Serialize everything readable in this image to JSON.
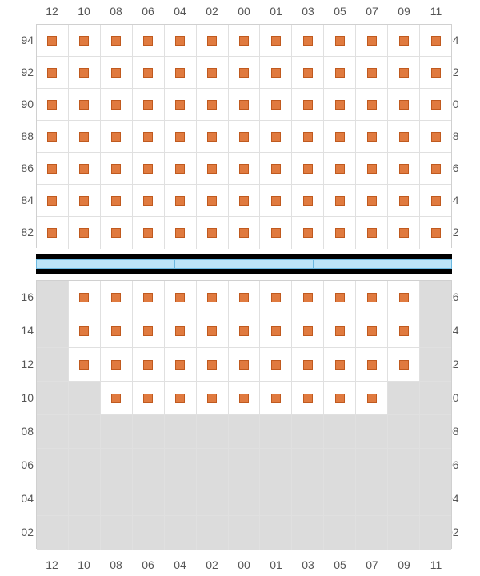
{
  "columns": [
    "12",
    "10",
    "08",
    "06",
    "04",
    "02",
    "00",
    "01",
    "03",
    "05",
    "07",
    "09",
    "11"
  ],
  "upper_rows": [
    "94",
    "92",
    "90",
    "88",
    "86",
    "84",
    "82"
  ],
  "lower_rows": [
    "16",
    "14",
    "12",
    "10",
    "08",
    "06",
    "04",
    "02"
  ],
  "upper_grid": [
    [
      1,
      1,
      1,
      1,
      1,
      1,
      1,
      1,
      1,
      1,
      1,
      1,
      1
    ],
    [
      1,
      1,
      1,
      1,
      1,
      1,
      1,
      1,
      1,
      1,
      1,
      1,
      1
    ],
    [
      1,
      1,
      1,
      1,
      1,
      1,
      1,
      1,
      1,
      1,
      1,
      1,
      1
    ],
    [
      1,
      1,
      1,
      1,
      1,
      1,
      1,
      1,
      1,
      1,
      1,
      1,
      1
    ],
    [
      1,
      1,
      1,
      1,
      1,
      1,
      1,
      1,
      1,
      1,
      1,
      1,
      1
    ],
    [
      1,
      1,
      1,
      1,
      1,
      1,
      1,
      1,
      1,
      1,
      1,
      1,
      1
    ],
    [
      1,
      1,
      1,
      1,
      1,
      1,
      1,
      1,
      1,
      1,
      1,
      1,
      1
    ]
  ],
  "lower_grid": [
    [
      2,
      1,
      1,
      1,
      1,
      1,
      1,
      1,
      1,
      1,
      1,
      1,
      2
    ],
    [
      2,
      1,
      1,
      1,
      1,
      1,
      1,
      1,
      1,
      1,
      1,
      1,
      2
    ],
    [
      2,
      1,
      1,
      1,
      1,
      1,
      1,
      1,
      1,
      1,
      1,
      1,
      2
    ],
    [
      2,
      2,
      1,
      1,
      1,
      1,
      1,
      1,
      1,
      1,
      1,
      2,
      2
    ],
    [
      2,
      2,
      2,
      2,
      2,
      2,
      2,
      2,
      2,
      2,
      2,
      2,
      2
    ],
    [
      2,
      2,
      2,
      2,
      2,
      2,
      2,
      2,
      2,
      2,
      2,
      2,
      2
    ],
    [
      2,
      2,
      2,
      2,
      2,
      2,
      2,
      2,
      2,
      2,
      2,
      2,
      2
    ],
    [
      2,
      2,
      2,
      2,
      2,
      2,
      2,
      2,
      2,
      2,
      2,
      2,
      2
    ]
  ],
  "seat_color": "#e07a3f",
  "seat_border": "#c05a1f",
  "unavail_color": "#dcdcdc",
  "grid_border": "#e0e0e0",
  "divider_bg": "#000000",
  "divider_bar_fill": "#bde4f7",
  "divider_bar_border": "#6bb8e0",
  "label_color": "#555555",
  "label_fontsize": 14,
  "upper_row_height": 40,
  "lower_row_height": 42,
  "divider_segments": 3
}
